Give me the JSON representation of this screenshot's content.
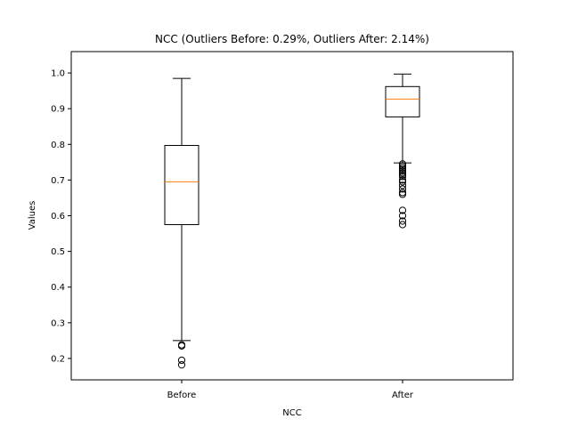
{
  "chart_data": {
    "type": "box",
    "title": "NCC (Outliers Before: 0.29%, Outliers After: 2.14%)",
    "xlabel": "NCC",
    "ylabel": "Values",
    "ylim": [
      0.14,
      1.06
    ],
    "yticks": [
      0.2,
      0.3,
      0.4,
      0.5,
      0.6,
      0.7,
      0.8,
      0.9,
      1.0
    ],
    "ytick_labels": [
      "0.2",
      "0.3",
      "0.4",
      "0.5",
      "0.6",
      "0.7",
      "0.8",
      "0.9",
      "1.0"
    ],
    "categories": [
      "Before",
      "After"
    ],
    "boxes": [
      {
        "label": "Before",
        "whisker_low": 0.25,
        "q1": 0.575,
        "median": 0.695,
        "q3": 0.797,
        "whisker_high": 0.985,
        "outliers": [
          0.238,
          0.235,
          0.195,
          0.182
        ]
      },
      {
        "label": "After",
        "whisker_low": 0.748,
        "q1": 0.877,
        "median": 0.927,
        "q3": 0.962,
        "whisker_high": 0.997,
        "outliers": [
          0.745,
          0.74,
          0.735,
          0.73,
          0.725,
          0.72,
          0.715,
          0.71,
          0.7,
          0.695,
          0.685,
          0.675,
          0.665,
          0.66,
          0.615,
          0.6,
          0.585,
          0.575
        ]
      }
    ],
    "colors": {
      "box": "#000000",
      "median": "#ff7f0e",
      "whisker": "#000000",
      "outlier": "#000000"
    },
    "grid": false,
    "legend": "none"
  }
}
